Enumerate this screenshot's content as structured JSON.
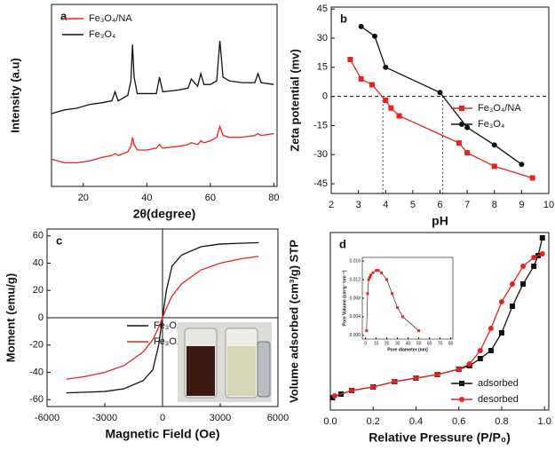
{
  "chart_data": [
    {
      "type": "line",
      "panel_label": "a",
      "xlabel": "2θ(degree)",
      "ylabel": "Intensity (a.u)",
      "xlim": [
        10,
        81
      ],
      "ylim": [
        0,
        100
      ],
      "xticks": [
        20,
        40,
        60,
        80
      ],
      "legend": "upper left",
      "series": [
        {
          "name": "Fe₃O₄/NA",
          "color": "#e8231e",
          "marker": "none",
          "x": [
            10,
            14,
            18,
            22,
            26,
            29,
            30,
            31,
            34,
            35,
            35.5,
            36,
            37,
            40,
            43,
            44,
            45,
            50,
            53,
            54,
            56,
            57,
            58,
            60,
            62,
            63,
            64,
            66,
            70,
            74,
            75,
            76,
            80
          ],
          "values": [
            15,
            13,
            13,
            14,
            16,
            17,
            18,
            17,
            19,
            22,
            27,
            23,
            20,
            20,
            21,
            23,
            21,
            22,
            23,
            24,
            23,
            25,
            24,
            25,
            27,
            33,
            28,
            27,
            27,
            28,
            29,
            28,
            29
          ]
        },
        {
          "name": "Fe₃O₄",
          "color": "#111111",
          "marker": "none",
          "x": [
            10,
            14,
            18,
            22,
            26,
            29,
            30,
            31,
            34,
            35,
            35.5,
            36,
            37,
            40,
            43,
            44,
            45,
            50,
            53,
            54,
            56,
            57,
            58,
            60,
            62,
            63,
            64,
            66,
            70,
            74,
            75,
            76,
            80
          ],
          "values": [
            40,
            42,
            43,
            45,
            46,
            47,
            52,
            47,
            50,
            58,
            78,
            60,
            51,
            51,
            51,
            60,
            52,
            53,
            54,
            59,
            55,
            62,
            56,
            56,
            58,
            80,
            60,
            58,
            57,
            57,
            62,
            57,
            56
          ]
        }
      ]
    },
    {
      "type": "line",
      "panel_label": "b",
      "xlabel": "pH",
      "ylabel": "Zeta potential (mv)",
      "xlim": [
        2,
        10
      ],
      "ylim": [
        -50,
        46
      ],
      "xticks": [
        2,
        3,
        4,
        5,
        6,
        7,
        8,
        9,
        10
      ],
      "yticks": [
        -45,
        -30,
        -15,
        0,
        15,
        30,
        45
      ],
      "hlines": [
        0
      ],
      "vlines": [
        3.9,
        6.1
      ],
      "legend": "center right",
      "series": [
        {
          "name": "Fe₃O₄/NA",
          "color": "#e8231e",
          "marker": "square",
          "x": [
            2.7,
            3.1,
            3.5,
            4.0,
            4.2,
            4.5,
            6.7,
            7.0,
            8.0,
            9.4
          ],
          "values": [
            19,
            9,
            6,
            -2,
            -6,
            -10,
            -24,
            -29,
            -36,
            -42
          ]
        },
        {
          "name": "Fe₃O₄",
          "color": "#111111",
          "marker": "circle",
          "x": [
            3.1,
            3.6,
            4.0,
            6.0,
            7.0,
            8.0,
            9.0
          ],
          "values": [
            36,
            31,
            15,
            2,
            -16,
            -25,
            -35
          ]
        }
      ]
    },
    {
      "type": "line",
      "panel_label": "c",
      "xlabel": "Magnetic Field (Oe)",
      "ylabel": "Moment (emu/g)",
      "xlim": [
        -6000,
        6000
      ],
      "ylim": [
        -65,
        65
      ],
      "xticks": [
        -6000,
        -3000,
        0,
        3000,
        6000
      ],
      "yticks": [
        -60,
        -40,
        -20,
        0,
        20,
        40,
        60
      ],
      "hlines": [
        0
      ],
      "zero_vline": 0,
      "legend": "center right",
      "series": [
        {
          "name": "Fe₃O₄",
          "color": "#111111",
          "marker": "none",
          "x": [
            -5000,
            -4000,
            -3000,
            -2000,
            -1000,
            -500,
            -200,
            0,
            200,
            500,
            1000,
            2000,
            3000,
            4000,
            5000
          ],
          "values": [
            -55,
            -54.5,
            -54,
            -52,
            -46,
            -38,
            -20,
            0,
            20,
            38,
            46,
            52,
            54,
            54.5,
            55
          ]
        },
        {
          "name": "Fe₃O₄/NA",
          "color": "#e8231e",
          "marker": "none",
          "x": [
            -5000,
            -4000,
            -3000,
            -2000,
            -1000,
            -500,
            -200,
            0,
            200,
            500,
            1000,
            2000,
            3000,
            4000,
            5000
          ],
          "values": [
            -45,
            -43,
            -40,
            -35,
            -25,
            -16,
            -7,
            0,
            7,
            16,
            25,
            35,
            40,
            43,
            45
          ]
        }
      ]
    },
    {
      "type": "line",
      "panel_label": "d",
      "xlabel": "Relative Pressure (P/P₀)",
      "ylabel": "Volume adsorbed (cm³/g) STP",
      "xlim": [
        0,
        1.02
      ],
      "ylim": [
        0,
        100
      ],
      "xticks": [
        {
          "value": 0,
          "label": "0.0"
        },
        0.2,
        0.4,
        0.6,
        0.8,
        {
          "value": 1,
          "label": "1.0"
        }
      ],
      "legend": "lower right",
      "series": [
        {
          "name": "adsorbed",
          "color": "#111111",
          "marker": "square",
          "x": [
            0.01,
            0.05,
            0.1,
            0.2,
            0.3,
            0.4,
            0.5,
            0.6,
            0.65,
            0.7,
            0.75,
            0.8,
            0.85,
            0.9,
            0.95,
            0.97,
            0.99
          ],
          "values": [
            7,
            9,
            11,
            13,
            16,
            18,
            20,
            23,
            25,
            29,
            33.5,
            43.5,
            58.5,
            71,
            81,
            87,
            97
          ]
        },
        {
          "name": "desorbed",
          "color": "#e8231e",
          "marker": "circle",
          "x": [
            0.02,
            0.1,
            0.2,
            0.3,
            0.4,
            0.5,
            0.6,
            0.65,
            0.7,
            0.75,
            0.8,
            0.85,
            0.9,
            0.95,
            0.99
          ],
          "values": [
            8,
            11,
            13,
            16,
            18,
            20,
            23,
            26,
            33.5,
            46,
            61,
            71,
            81,
            86,
            88
          ]
        }
      ]
    },
    {
      "type": "line",
      "xlabel": "Pore diameter (nm)",
      "ylabel": "Pore Volume (cm³g⁻¹nm⁻¹)",
      "xlim": [
        -3,
        82
      ],
      "ylim": [
        -0.0008,
        0.0168
      ],
      "xticks": [
        0,
        10,
        20,
        30,
        40,
        50,
        60,
        70,
        80
      ],
      "yticks": [
        {
          "value": 0,
          "label": "0.000"
        },
        0.004,
        0.008,
        0.012,
        0.016
      ],
      "series": [
        {
          "color": "#e8231e",
          "marker": "square",
          "line_color": "#111111",
          "x": [
            1,
            2,
            3,
            4,
            5,
            7,
            10,
            12,
            15,
            20,
            25,
            30,
            35,
            50
          ],
          "values": [
            0.001,
            0.009,
            0.012,
            0.0125,
            0.013,
            0.0135,
            0.014,
            0.014,
            0.0135,
            0.012,
            0.009,
            0.006,
            0.004,
            0.001
          ]
        }
      ]
    }
  ]
}
